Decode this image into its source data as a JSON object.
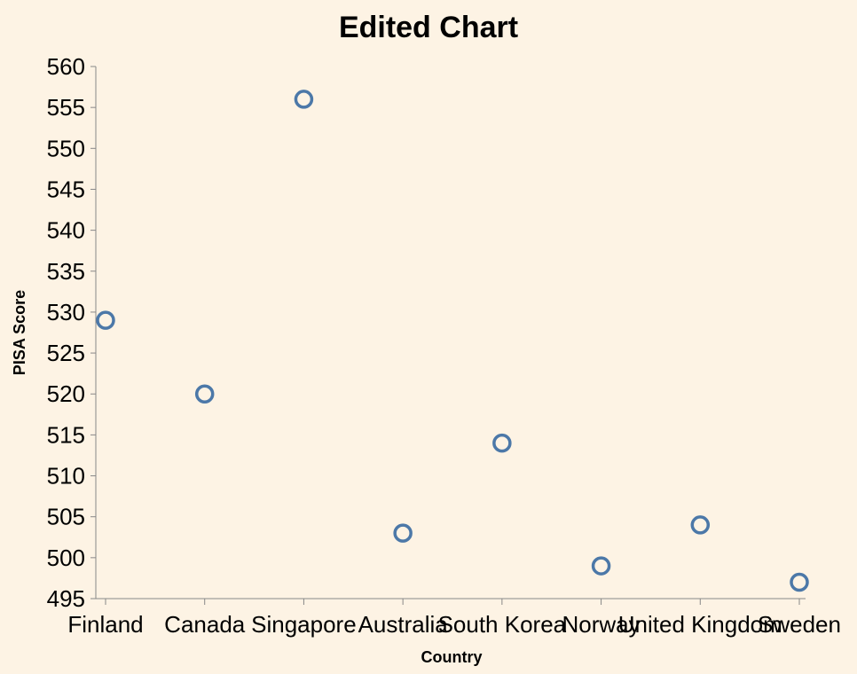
{
  "chart_data": {
    "type": "scatter",
    "title": "Edited Chart",
    "xlabel": "Country",
    "ylabel": "PISA Score",
    "categories": [
      "Finland",
      "Canada",
      "Singapore",
      "Australia",
      "South Korea",
      "Norway",
      "United Kingdom",
      "Sweden"
    ],
    "series": [
      {
        "values": [
          529,
          520,
          556,
          503,
          514,
          499,
          504,
          497
        ]
      }
    ],
    "ylim": [
      495,
      560
    ],
    "yticks": [
      495,
      500,
      505,
      510,
      515,
      520,
      525,
      530,
      535,
      540,
      545,
      550,
      555,
      560
    ],
    "grid": false,
    "colors": {
      "background": "#fdf3e4",
      "point": "#4c78a8",
      "axis": "#888888"
    }
  }
}
